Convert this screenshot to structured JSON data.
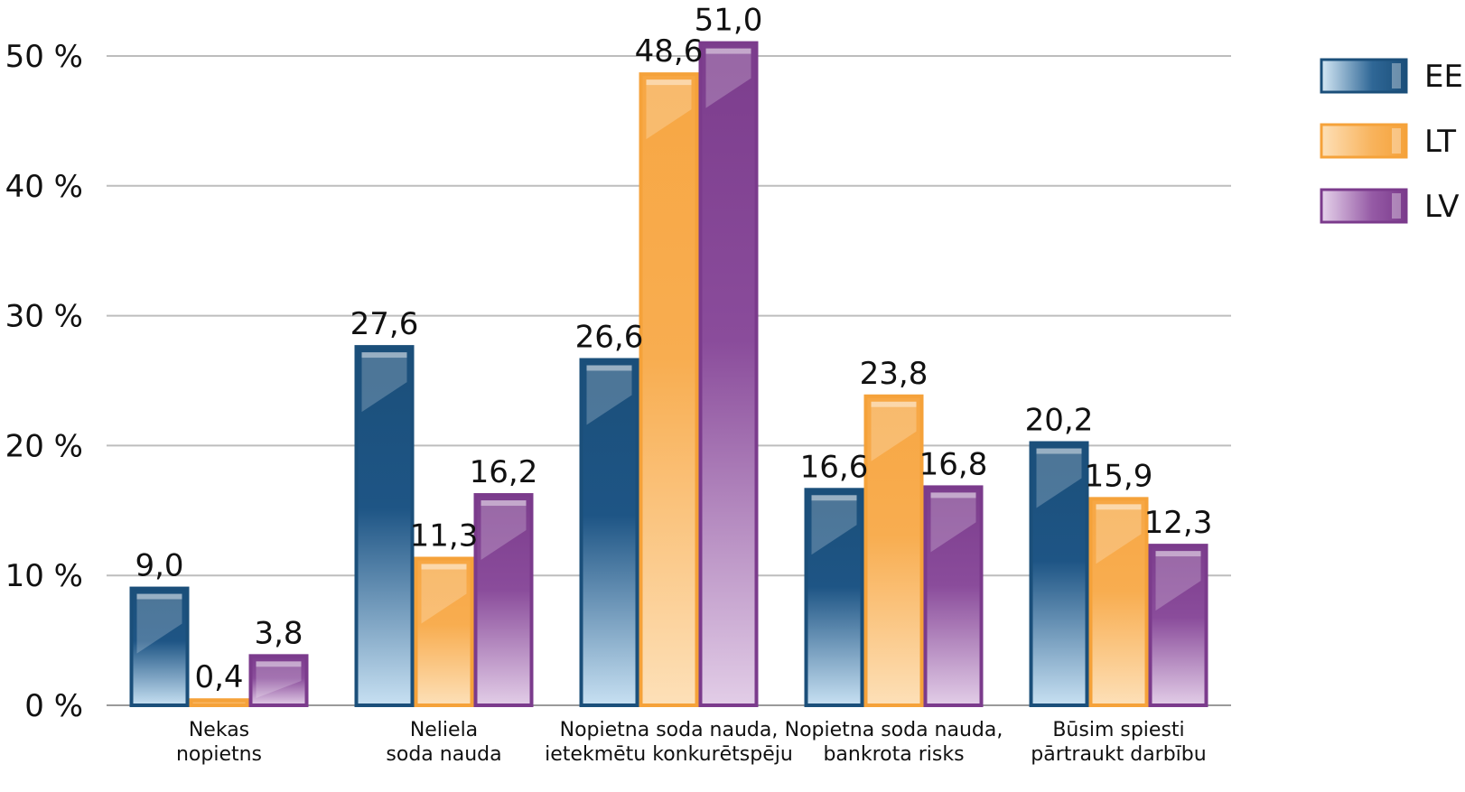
{
  "chart_data": {
    "type": "bar",
    "title": "",
    "xlabel": "",
    "ylabel": "",
    "ylim": [
      0,
      50
    ],
    "yticks": [
      0,
      10,
      20,
      30,
      40,
      50
    ],
    "ytick_labels": [
      "0 %",
      "10 %",
      "20 %",
      "30 %",
      "40 %",
      "50 %"
    ],
    "grid": true,
    "legend_position": "top-right",
    "categories": [
      [
        "Nekas",
        "nopietns"
      ],
      [
        "Neliela",
        "soda nauda"
      ],
      [
        "Nopietna soda nauda,",
        "ietekmētu konkurētspēju"
      ],
      [
        "Nopietna soda nauda,",
        "bankrota risks"
      ],
      [
        "Būsim spiesti",
        "pārtraukt darbību"
      ]
    ],
    "series": [
      {
        "name": "EE",
        "color": "#1b4f7a",
        "values": [
          9.0,
          27.6,
          26.6,
          16.6,
          20.2
        ],
        "labels": [
          "9,0",
          "27,6",
          "26,6",
          "16,6",
          "20,2"
        ]
      },
      {
        "name": "LT",
        "color": "#f5a23a",
        "values": [
          0.4,
          11.3,
          48.6,
          23.8,
          15.9
        ],
        "labels": [
          "0,4",
          "11,3",
          "48,6",
          "23,8",
          "15,9"
        ]
      },
      {
        "name": "LV",
        "color": "#7b3b8c",
        "values": [
          3.8,
          16.2,
          51.0,
          16.8,
          12.3
        ],
        "labels": [
          "3,8",
          "16,2",
          "51,0",
          "16,8",
          "12,3"
        ]
      }
    ]
  }
}
